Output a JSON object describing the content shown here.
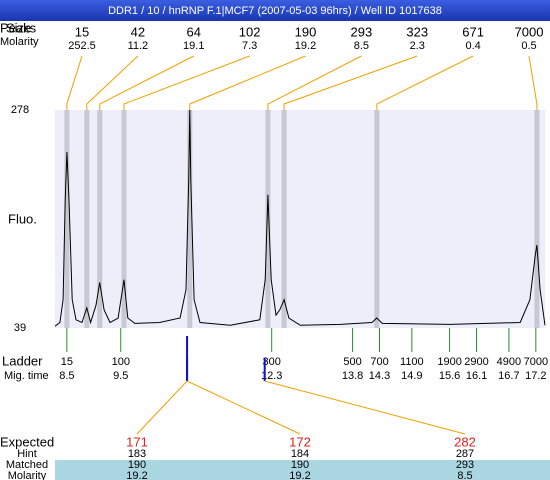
{
  "header": {
    "title": "DDR1 / 10 / hnRNP F.1|MCF7 (2007-05-03 96hrs) / Well ID 1017638"
  },
  "chart_data": {
    "type": "electropherogram",
    "y_label": "Fluo.",
    "ylim": [
      39,
      278
    ],
    "yticks": [
      39,
      278
    ],
    "xlim": [
      8.28,
      17.37
    ],
    "peaks": {
      "label": "Size",
      "label_overlap": "Peaks",
      "molarity_label": "Molarity",
      "sizes": [
        15,
        42,
        64,
        102,
        190,
        293,
        323,
        671,
        7000
      ],
      "molarity": [
        252.5,
        11.2,
        19.1,
        7.3,
        19.2,
        8.5,
        2.3,
        0.4,
        0.5
      ],
      "time": [
        8.5,
        8.87,
        9.11,
        9.56,
        10.78,
        12.23,
        12.53,
        14.25,
        17.22
      ],
      "color": "#c8c8d2",
      "connector_color": "#f0a000"
    },
    "trace": {
      "color": "#000000",
      "x": [
        8.28,
        8.37,
        8.43,
        8.47,
        8.5,
        8.54,
        8.6,
        8.67,
        8.78,
        8.87,
        8.94,
        9.04,
        9.11,
        9.19,
        9.3,
        9.45,
        9.56,
        9.63,
        9.76,
        10.22,
        10.6,
        10.71,
        10.76,
        10.78,
        10.8,
        10.86,
        10.97,
        11.53,
        12.08,
        12.18,
        12.23,
        12.29,
        12.38,
        12.45,
        12.53,
        12.62,
        12.83,
        13.57,
        14.16,
        14.25,
        14.35,
        15.61,
        16.91,
        17.09,
        17.19,
        17.22,
        17.28,
        17.37
      ],
      "values": [
        41,
        45,
        70,
        179,
        232,
        179,
        70,
        48,
        45,
        61,
        45,
        64,
        89,
        59,
        45,
        50,
        92,
        50,
        44,
        45,
        50,
        81,
        201,
        278,
        201,
        70,
        45,
        42,
        48,
        92,
        185,
        92,
        53,
        59,
        70,
        50,
        42,
        43,
        45,
        50,
        44,
        43,
        45,
        70,
        119,
        130,
        81,
        42
      ]
    },
    "ladder": {
      "label": "Ladder",
      "time_label": "Mig. time",
      "color": "#2e8b2e",
      "sizes": [
        15,
        100,
        300,
        500,
        700,
        1100,
        1900,
        2900,
        4900,
        7000
      ],
      "times": [
        8.5,
        9.5,
        12.3,
        13.8,
        14.3,
        14.9,
        15.6,
        16.1,
        16.7,
        17.2
      ]
    },
    "expected": {
      "label": "Expected",
      "hint_label": "Hint",
      "matched_label": "Matched",
      "molarity_label": "Molarity",
      "values": [
        171,
        172,
        282
      ],
      "hint": [
        183,
        184,
        287
      ],
      "matched": [
        190,
        190,
        293
      ],
      "molarity": [
        19.2,
        19.2,
        8.5
      ],
      "time": [
        10.73,
        10.73,
        12.17
      ],
      "marker_color": "#1010c8",
      "value_color": "#e02020",
      "row_color": "#aad6e2"
    }
  }
}
